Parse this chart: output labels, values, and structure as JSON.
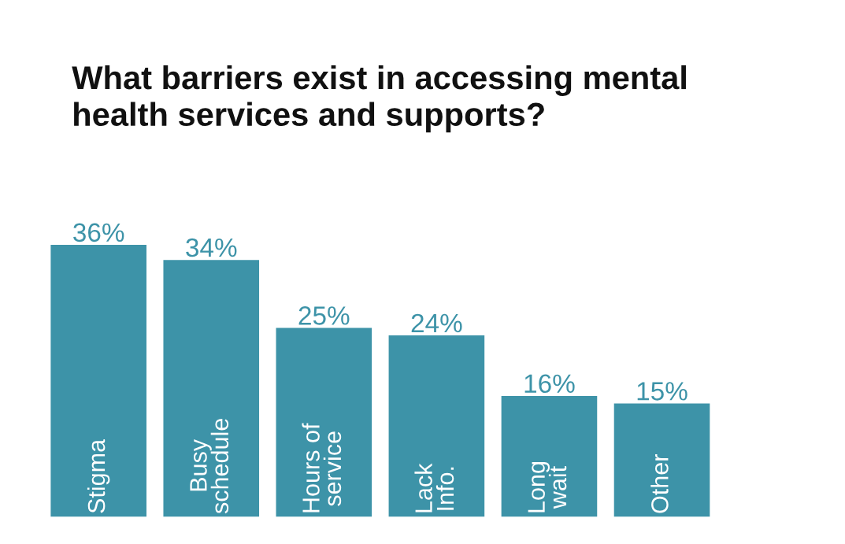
{
  "chart_data": {
    "type": "bar",
    "title": "What barriers exist in accessing mental\nhealth services and supports?",
    "categories": [
      "Stigma",
      "Busy\nschedule",
      "Hours of\nservice",
      "Lack\nInfo.",
      "Long\nwait",
      "Other"
    ],
    "values": [
      36,
      34,
      25,
      24,
      16,
      15
    ],
    "color": "#3d93a8",
    "value_labels": [
      "36%",
      "34%",
      "25%",
      "24%",
      "16%",
      "15%"
    ]
  }
}
